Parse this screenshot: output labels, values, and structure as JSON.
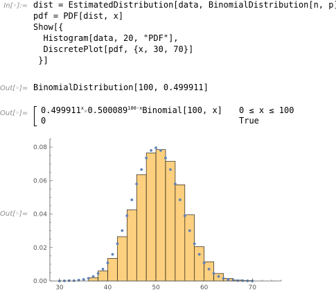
{
  "cells": {
    "in_label": "In[◦]:=",
    "input_lines": [
      "dist = EstimatedDistribution[data, BinomialDistribution[n, p]]",
      "pdf = PDF[dist, x]",
      "Show[{",
      "  Histogram[data, 20, \"PDF\"],",
      "  DiscretePlot[pdf, {x, 30, 70}]",
      " }]"
    ],
    "out1_label": "Out[◦]=",
    "out1_text": "BinomialDistribution[100, 0.499911]",
    "out2_label": "Out[◦]=",
    "piece1_base": "0.499911",
    "piece1_exp": "x",
    "piece1_times": "×",
    "piece1_base2": "0.500089",
    "piece1_exp2": "100-x",
    "piece1_tail": "Binomial[100, x]",
    "piece1_cond": "0 ≤ x ≤ 100",
    "piece2_value": "0",
    "piece2_cond": "True",
    "out3_label": "Out[◦]="
  },
  "colors": {
    "bar_fill": "#fcd07f",
    "bar_stroke": "#000000",
    "point": "#5e81b5",
    "label": "#8c8c8c"
  },
  "chart_data": {
    "type": "bar",
    "overlay_type": "scatter",
    "x_ticks": [
      30,
      40,
      50,
      60,
      70
    ],
    "y_ticks": [
      0.0,
      0.02,
      0.04,
      0.06,
      0.08
    ],
    "y_tick_labels": [
      "0.00",
      "0.02",
      "0.04",
      "0.06",
      "0.08"
    ],
    "xlim": [
      28,
      76
    ],
    "ylim": [
      0,
      0.085
    ],
    "bins": [
      {
        "x0": 36,
        "x1": 38,
        "value": 0.002
      },
      {
        "x0": 38,
        "x1": 40,
        "value": 0.006
      },
      {
        "x0": 40,
        "x1": 42,
        "value": 0.0135
      },
      {
        "x0": 42,
        "x1": 44,
        "value": 0.0265
      },
      {
        "x0": 44,
        "x1": 46,
        "value": 0.0425
      },
      {
        "x0": 46,
        "x1": 48,
        "value": 0.0635
      },
      {
        "x0": 48,
        "x1": 50,
        "value": 0.0765
      },
      {
        "x0": 50,
        "x1": 52,
        "value": 0.0785
      },
      {
        "x0": 52,
        "x1": 54,
        "value": 0.0715
      },
      {
        "x0": 54,
        "x1": 56,
        "value": 0.0575
      },
      {
        "x0": 56,
        "x1": 58,
        "value": 0.0395
      },
      {
        "x0": 58,
        "x1": 60,
        "value": 0.0205
      },
      {
        "x0": 60,
        "x1": 62,
        "value": 0.0115
      },
      {
        "x0": 62,
        "x1": 64,
        "value": 0.0045
      },
      {
        "x0": 64,
        "x1": 66,
        "value": 0.0015
      },
      {
        "x0": 66,
        "x1": 68,
        "value": 0.0005
      },
      {
        "x0": 68,
        "x1": 70,
        "value": 0.0002
      }
    ],
    "points": [
      {
        "x": 30,
        "y": 0.0
      },
      {
        "x": 31,
        "y": 0.0001
      },
      {
        "x": 32,
        "y": 0.0002
      },
      {
        "x": 33,
        "y": 0.0002
      },
      {
        "x": 34,
        "y": 0.0005
      },
      {
        "x": 35,
        "y": 0.0009
      },
      {
        "x": 36,
        "y": 0.0016
      },
      {
        "x": 37,
        "y": 0.0027
      },
      {
        "x": 38,
        "y": 0.0045
      },
      {
        "x": 39,
        "y": 0.0071
      },
      {
        "x": 40,
        "y": 0.0108
      },
      {
        "x": 41,
        "y": 0.0159
      },
      {
        "x": 42,
        "y": 0.0223
      },
      {
        "x": 43,
        "y": 0.0301
      },
      {
        "x": 44,
        "y": 0.039
      },
      {
        "x": 45,
        "y": 0.0485
      },
      {
        "x": 46,
        "y": 0.058
      },
      {
        "x": 47,
        "y": 0.0666
      },
      {
        "x": 48,
        "y": 0.0735
      },
      {
        "x": 49,
        "y": 0.078
      },
      {
        "x": 50,
        "y": 0.0796
      },
      {
        "x": 51,
        "y": 0.078
      },
      {
        "x": 52,
        "y": 0.0735
      },
      {
        "x": 53,
        "y": 0.0666
      },
      {
        "x": 54,
        "y": 0.058
      },
      {
        "x": 55,
        "y": 0.0485
      },
      {
        "x": 56,
        "y": 0.039
      },
      {
        "x": 57,
        "y": 0.0301
      },
      {
        "x": 58,
        "y": 0.0223
      },
      {
        "x": 59,
        "y": 0.0159
      },
      {
        "x": 60,
        "y": 0.0108
      },
      {
        "x": 61,
        "y": 0.0071
      },
      {
        "x": 62,
        "y": 0.0045
      },
      {
        "x": 63,
        "y": 0.0027
      },
      {
        "x": 64,
        "y": 0.0016
      },
      {
        "x": 65,
        "y": 0.0009
      },
      {
        "x": 66,
        "y": 0.0005
      },
      {
        "x": 67,
        "y": 0.0002
      },
      {
        "x": 68,
        "y": 0.0002
      },
      {
        "x": 69,
        "y": 0.0001
      },
      {
        "x": 70,
        "y": 0.0
      }
    ],
    "grid": false,
    "title": "",
    "xlabel": "",
    "ylabel": ""
  }
}
